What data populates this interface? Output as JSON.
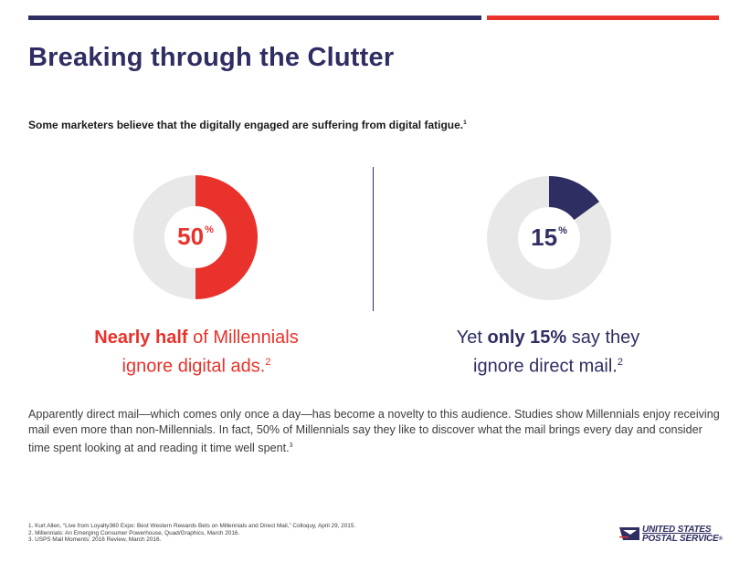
{
  "colors": {
    "navy": "#2f2e63",
    "red": "#e8322b",
    "ring": "#e8e8e8"
  },
  "header": {
    "title": "Breaking through the Clutter",
    "intro": "Some marketers believe that the digitally engaged are suffering from digital fatigue.",
    "intro_ref": "1"
  },
  "stats": [
    {
      "value": 50,
      "value_text": "50",
      "unit": "%",
      "caption_bold": "Nearly half",
      "caption_rest": " of Millennials",
      "caption_line2": "ignore digital ads.",
      "ref": "2"
    },
    {
      "value": 15,
      "value_text": "15",
      "unit": "%",
      "caption_pre": "Yet ",
      "caption_bold": "only 15%",
      "caption_rest": " say they",
      "caption_line2": "ignore direct mail.",
      "ref": "2"
    }
  ],
  "body": {
    "text": "Apparently direct mail—which comes only once a day—has become a novelty to this audience. Studies show Millennials enjoy receiving mail even more than non-Millennials. In fact, 50% of Millennials say they like to discover what the mail brings every day and consider time spent looking at and reading it time well spent.",
    "ref": "3"
  },
  "footnotes": [
    "1. Kurt Allen, “Live from Loyalty360 Expo: Best Western Rewards Bets on Millennials and Direct Mail,” Colloquy, April 29, 2015.",
    "2. Millennials: An Emerging Consumer Powerhouse, Quad/Graphics, March 2016.",
    "3. USPS Mail Moments: 2016 Review, March 2016."
  ],
  "logo": {
    "line1": "UNITED STATES",
    "line2": "POSTAL SERVICE",
    "reg": "®"
  }
}
